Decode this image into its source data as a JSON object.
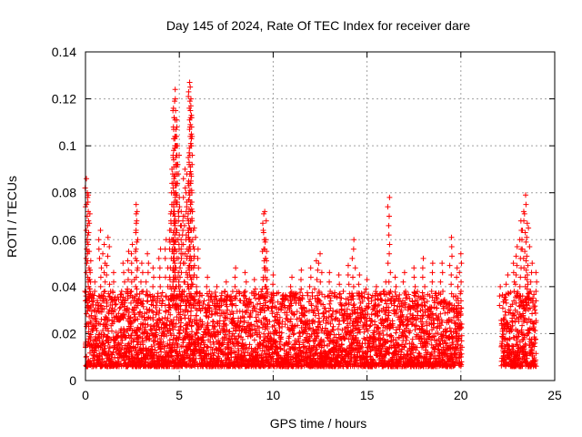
{
  "chart_data": {
    "type": "scatter",
    "title": "Day 145 of 2024, Rate Of TEC Index for receiver dare",
    "xlabel": "GPS time / hours",
    "ylabel": "ROTI / TECUs",
    "xlim": [
      0,
      25
    ],
    "ylim": [
      0,
      0.14
    ],
    "x_ticks": [
      0,
      5,
      10,
      15,
      20,
      25
    ],
    "x_tick_labels": [
      "0",
      "5",
      "10",
      "15",
      "20",
      "25"
    ],
    "y_ticks": [
      0,
      0.02,
      0.04,
      0.06,
      0.08,
      0.1,
      0.12,
      0.14
    ],
    "y_tick_labels": [
      "0",
      "0.02",
      "0.04",
      "0.06",
      "0.08",
      "0.1",
      "0.12",
      "0.14"
    ],
    "grid": true,
    "marker": "+",
    "color": "#ff0000",
    "series": [
      {
        "points": [
          [
            0.05,
            0.086
          ],
          [
            0.1,
            0.08
          ],
          [
            0.15,
            0.079
          ],
          [
            0.2,
            0.055
          ],
          [
            0.25,
            0.046
          ],
          [
            0.5,
            0.042
          ],
          [
            0.8,
            0.064
          ],
          [
            1.0,
            0.058
          ],
          [
            1.2,
            0.061
          ],
          [
            1.5,
            0.046
          ],
          [
            2.0,
            0.05
          ],
          [
            2.3,
            0.055
          ],
          [
            2.5,
            0.058
          ],
          [
            2.7,
            0.075
          ],
          [
            2.75,
            0.072
          ],
          [
            3.0,
            0.05
          ],
          [
            3.3,
            0.054
          ],
          [
            3.6,
            0.048
          ],
          [
            4.0,
            0.056
          ],
          [
            4.3,
            0.06
          ],
          [
            4.55,
            0.068
          ],
          [
            4.6,
            0.075
          ],
          [
            4.65,
            0.088
          ],
          [
            4.7,
            0.098
          ],
          [
            4.72,
            0.112
          ],
          [
            4.75,
            0.119
          ],
          [
            4.78,
            0.124
          ],
          [
            4.8,
            0.115
          ],
          [
            4.85,
            0.104
          ],
          [
            4.9,
            0.1
          ],
          [
            5.0,
            0.078
          ],
          [
            5.1,
            0.072
          ],
          [
            5.2,
            0.07
          ],
          [
            5.3,
            0.09
          ],
          [
            5.4,
            0.088
          ],
          [
            5.5,
            0.085
          ],
          [
            5.55,
            0.127
          ],
          [
            5.58,
            0.125
          ],
          [
            5.6,
            0.112
          ],
          [
            5.62,
            0.12
          ],
          [
            5.7,
            0.072
          ],
          [
            5.8,
            0.065
          ],
          [
            6.0,
            0.056
          ],
          [
            6.5,
            0.044
          ],
          [
            7.0,
            0.04
          ],
          [
            7.5,
            0.042
          ],
          [
            8.0,
            0.048
          ],
          [
            8.5,
            0.046
          ],
          [
            9.0,
            0.043
          ],
          [
            9.5,
            0.071
          ],
          [
            9.55,
            0.072
          ],
          [
            9.6,
            0.06
          ],
          [
            9.65,
            0.055
          ],
          [
            10.0,
            0.045
          ],
          [
            10.5,
            0.036
          ],
          [
            11.0,
            0.044
          ],
          [
            11.5,
            0.047
          ],
          [
            12.0,
            0.048
          ],
          [
            12.3,
            0.051
          ],
          [
            12.5,
            0.054
          ],
          [
            13.0,
            0.046
          ],
          [
            13.5,
            0.045
          ],
          [
            14.0,
            0.049
          ],
          [
            14.3,
            0.06
          ],
          [
            14.6,
            0.045
          ],
          [
            15.0,
            0.043
          ],
          [
            15.5,
            0.04
          ],
          [
            16.0,
            0.042
          ],
          [
            16.2,
            0.078
          ],
          [
            16.5,
            0.044
          ],
          [
            17.0,
            0.046
          ],
          [
            17.5,
            0.048
          ],
          [
            18.0,
            0.052
          ],
          [
            18.5,
            0.05
          ],
          [
            19.0,
            0.05
          ],
          [
            19.5,
            0.061
          ],
          [
            19.8,
            0.048
          ],
          [
            20.0,
            0.054
          ],
          [
            22.1,
            0.04
          ],
          [
            22.5,
            0.045
          ],
          [
            22.8,
            0.05
          ],
          [
            23.0,
            0.057
          ],
          [
            23.2,
            0.068
          ],
          [
            23.35,
            0.072
          ],
          [
            23.45,
            0.079
          ],
          [
            23.6,
            0.065
          ],
          [
            23.8,
            0.05
          ],
          [
            24.0,
            0.046
          ]
        ]
      }
    ]
  }
}
